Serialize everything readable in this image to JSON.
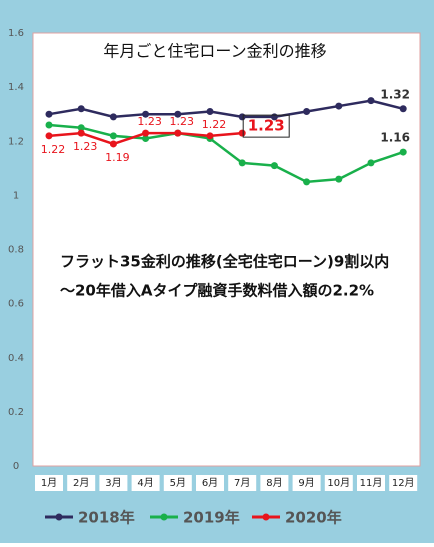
{
  "chart_data": {
    "type": "line",
    "title": "年月ごと住宅ローン金利の推移",
    "annotations": [
      "フラット35金利の推移(全宅住宅ローン)9割以内",
      "～20年借入Aタイプ融資手数料借入額の2.2%"
    ],
    "categories": [
      "1月",
      "2月",
      "3月",
      "4月",
      "5月",
      "6月",
      "7月",
      "8月",
      "9月",
      "10月",
      "11月",
      "12月"
    ],
    "series": [
      {
        "name": "2018年",
        "color": "#2e2b5e",
        "values": [
          1.3,
          1.32,
          1.29,
          1.3,
          1.3,
          1.31,
          1.29,
          1.29,
          1.31,
          1.33,
          1.35,
          1.32
        ],
        "value_labels": [
          null,
          null,
          null,
          null,
          null,
          null,
          null,
          null,
          null,
          null,
          null,
          "1.32"
        ]
      },
      {
        "name": "2019年",
        "color": "#19b04b",
        "values": [
          1.26,
          1.25,
          1.22,
          1.21,
          1.23,
          1.21,
          1.12,
          1.11,
          1.05,
          1.06,
          1.12,
          1.16
        ],
        "value_labels": [
          null,
          null,
          null,
          null,
          null,
          null,
          null,
          null,
          null,
          null,
          null,
          "1.16"
        ]
      },
      {
        "name": "2020年",
        "color": "#e8141c",
        "values": [
          1.22,
          1.23,
          1.19,
          1.23,
          1.23,
          1.22,
          1.23,
          null,
          null,
          null,
          null,
          null
        ]
      }
    ],
    "ylim": [
      0,
      1.6
    ],
    "yticks": [
      0,
      0.2,
      0.4,
      0.6,
      0.8,
      1,
      1.2,
      1.4,
      1.6
    ],
    "grid": false,
    "legend": "bottom"
  }
}
